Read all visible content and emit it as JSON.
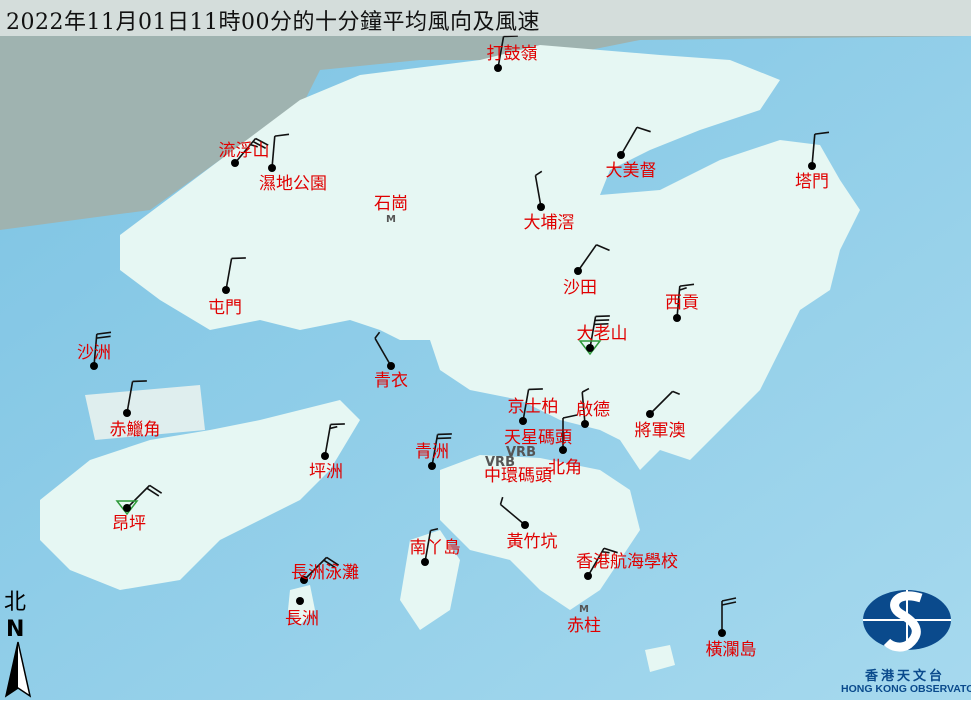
{
  "title": "2022年11月01日11時00分的十分鐘平均風向及風速",
  "north_label": "北",
  "north_letter": "N",
  "logo": {
    "chinese": "香港天文台",
    "english": "HONG KONG OBSERVATORY"
  },
  "colors": {
    "sea": "#8ccbe6",
    "land": "#e6f7f3",
    "label": "#e00000",
    "barb": "#111111",
    "logo": "#0a4a8c",
    "triangle": "#2e9a3a"
  },
  "vrb_label": "VRB",
  "stations": [
    {
      "name": "打鼓嶺",
      "dir": 10,
      "speed": 10
    },
    {
      "name": "流浮山",
      "dir": 40,
      "speed": 25
    },
    {
      "name": "濕地公園",
      "dir": 5,
      "speed": 10
    },
    {
      "name": "大埔滘",
      "dir": 350,
      "speed": 5
    },
    {
      "name": "大美督",
      "dir": 30,
      "speed": 10
    },
    {
      "name": "塔門",
      "dir": 5,
      "speed": 10
    },
    {
      "name": "沙田",
      "dir": 35,
      "speed": 10
    },
    {
      "name": "屯門",
      "dir": 10,
      "speed": 10
    },
    {
      "name": "西貢",
      "dir": 5,
      "speed": 15
    },
    {
      "name": "大老山",
      "dir": 10,
      "speed": 30,
      "marker": "triangle"
    },
    {
      "name": "沙洲",
      "dir": 5,
      "speed": 20
    },
    {
      "name": "青衣",
      "dir": 330,
      "speed": 5
    },
    {
      "name": "赤鱲角",
      "dir": 10,
      "speed": 10
    },
    {
      "name": "京士柏",
      "dir": 10,
      "speed": 10
    },
    {
      "name": "啟德",
      "dir": 355,
      "speed": 5
    },
    {
      "name": "將軍澳",
      "dir": 45,
      "speed": 5
    },
    {
      "name": "北角",
      "dir": 0,
      "speed": 10
    },
    {
      "name": "青洲",
      "dir": 10,
      "speed": 20
    },
    {
      "name": "坪洲",
      "dir": 10,
      "speed": 15
    },
    {
      "name": "昂坪",
      "dir": 45,
      "speed": 20,
      "marker": "triangle"
    },
    {
      "name": "黃竹坑",
      "dir": 310,
      "speed": 5
    },
    {
      "name": "南丫島",
      "dir": 10,
      "speed": 5
    },
    {
      "name": "香港航海學校",
      "dir": 30,
      "speed": 15
    },
    {
      "name": "長洲泳灘",
      "dir": 45,
      "speed": 20
    },
    {
      "name": "長洲",
      "dir": null,
      "speed": null
    },
    {
      "name": "橫瀾島",
      "dir": 0,
      "speed": 20
    }
  ],
  "text_labels": [
    {
      "name": "石崗",
      "marker": "M"
    },
    {
      "name": "天星碼頭",
      "marker": "VRB"
    },
    {
      "name": "中環碼頭",
      "marker": "VRB"
    },
    {
      "name": "赤柱",
      "marker": "M"
    }
  ]
}
